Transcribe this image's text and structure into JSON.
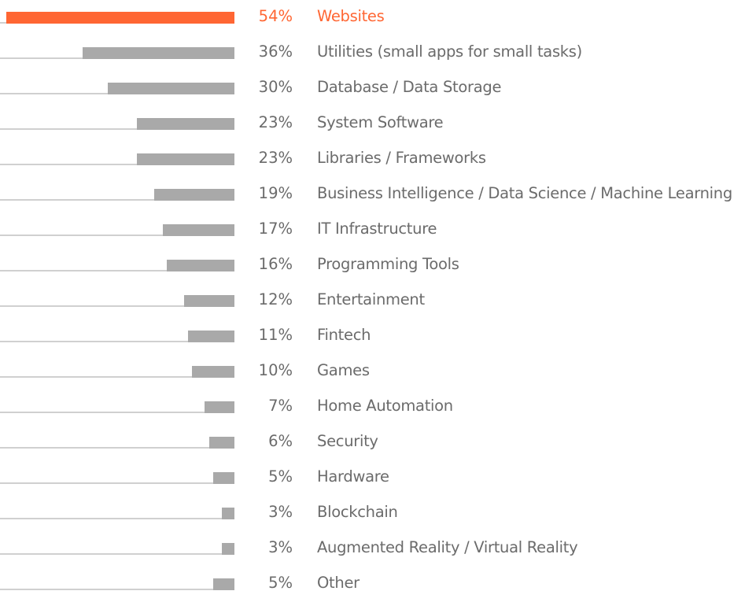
{
  "chart_data": {
    "type": "bar",
    "orientation": "horizontal",
    "title": "",
    "xlabel": "",
    "ylabel": "",
    "xlim": [
      0,
      54
    ],
    "grid": false,
    "highlight_color": "#ff6633",
    "bar_color": "#a9a9a9",
    "categories": [
      "Websites",
      "Utilities (small apps for small tasks)",
      "Database / Data Storage",
      "System Software",
      "Libraries / Frameworks",
      "Business Intelligence / Data Science / Machine Learning",
      "IT Infrastructure",
      "Programming Tools",
      "Entertainment",
      "Fintech",
      "Games",
      "Home Automation",
      "Security",
      "Hardware",
      "Blockchain",
      "Augmented Reality / Virtual Reality",
      "Other"
    ],
    "values": [
      54,
      36,
      30,
      23,
      23,
      19,
      17,
      16,
      12,
      11,
      10,
      7,
      6,
      5,
      3,
      3,
      5
    ],
    "value_labels": [
      "54%",
      "36%",
      "30%",
      "23%",
      "23%",
      "19%",
      "17%",
      "16%",
      "12%",
      "11%",
      "10%",
      "7%",
      "6%",
      "5%",
      "3%",
      "3%",
      "5%"
    ],
    "highlighted_index": 0
  }
}
